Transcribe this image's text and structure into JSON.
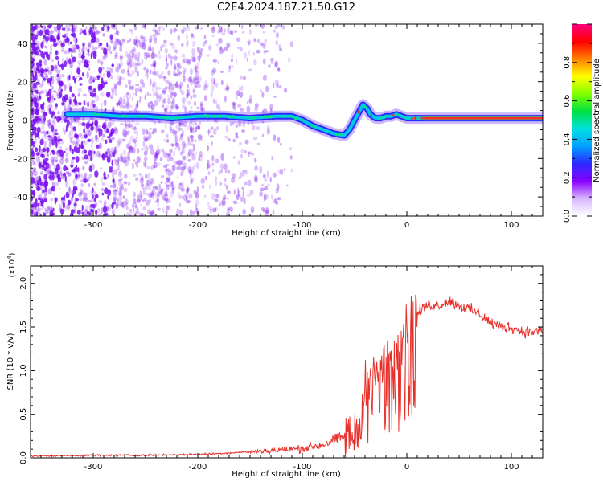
{
  "title": "C2E4.2024.187.21.50.G12",
  "colors": {
    "snr_line": "#e8302a",
    "frame": "#000000",
    "ridge_blue": "#2b2bff",
    "ridge_green": "#00e08a",
    "ridge_red": "#ff2a2a",
    "noise": "#7a10f0"
  },
  "chart_data": [
    {
      "type": "heatmap",
      "title": "C2E4.2024.187.21.50.G12",
      "xlabel": "Height of straight line (km)",
      "ylabel": "Frequency (Hz)",
      "xlim": [
        -360,
        130
      ],
      "ylim": [
        -50,
        50
      ],
      "x_ticks": [
        -300,
        -200,
        -100,
        0,
        100
      ],
      "y_ticks": [
        -40,
        -20,
        0,
        20,
        40
      ],
      "colorbar": {
        "label": "Normalized spectral amplitude",
        "range": [
          0,
          1
        ],
        "ticks": [
          "0.0",
          "0.2",
          "0.4",
          "0.6",
          "0.8"
        ],
        "colormap": [
          "#ffffff",
          "#d8b6ff",
          "#8a00ff",
          "#2a2aff",
          "#00a0ff",
          "#00e0e0",
          "#00e040",
          "#80ff00",
          "#ffff00",
          "#ff8000",
          "#ff0000",
          "#ff0080"
        ]
      },
      "ridge": {
        "x": [
          -325,
          -300,
          -275,
          -250,
          -225,
          -200,
          -175,
          -150,
          -125,
          -110,
          -100,
          -90,
          -80,
          -70,
          -60,
          -55,
          -50,
          -45,
          -42,
          -38,
          -35,
          -30,
          -25,
          -20,
          -15,
          -10,
          -5,
          0,
          5,
          10,
          20,
          40,
          60,
          80,
          100,
          130
        ],
        "y": [
          3,
          3,
          2,
          2,
          1,
          2,
          2,
          1,
          2,
          2,
          0,
          -3,
          -5,
          -7,
          -8,
          -5,
          0,
          5,
          8,
          6,
          3,
          1,
          1,
          2,
          2,
          3,
          2,
          1,
          1,
          1,
          1,
          1,
          1,
          1,
          1,
          1
        ]
      }
    },
    {
      "type": "line",
      "xlabel": "Height of straight line (km)",
      "ylabel": "SNR (10 * v/v)",
      "y_multiplier": "(x10",
      "y_multiplier_exp": "4",
      "xlim": [
        -360,
        130
      ],
      "ylim": [
        0,
        2.2
      ],
      "x_ticks": [
        -300,
        -200,
        -100,
        0,
        100
      ],
      "y_ticks": [
        "0.0",
        "0.5",
        "1.0",
        "1.5",
        "2.0"
      ],
      "series": [
        {
          "x": [
            -360,
            -300,
            -250,
            -200,
            -180,
            -150,
            -120,
            -100,
            -80,
            -60,
            -50,
            -45,
            -40,
            -35,
            -30,
            -25,
            -20,
            -15,
            -10,
            -5,
            0,
            10,
            20,
            30,
            40,
            50,
            60,
            70,
            80,
            90,
            100,
            110,
            120,
            130
          ],
          "y": [
            0.02,
            0.03,
            0.03,
            0.04,
            0.05,
            0.07,
            0.09,
            0.11,
            0.15,
            0.25,
            0.35,
            0.5,
            0.7,
            0.9,
            1.0,
            1.0,
            1.1,
            1.2,
            1.3,
            1.4,
            1.5,
            1.65,
            1.75,
            1.75,
            1.8,
            1.75,
            1.7,
            1.65,
            1.55,
            1.5,
            1.5,
            1.45,
            1.45,
            1.45
          ]
        }
      ]
    }
  ]
}
